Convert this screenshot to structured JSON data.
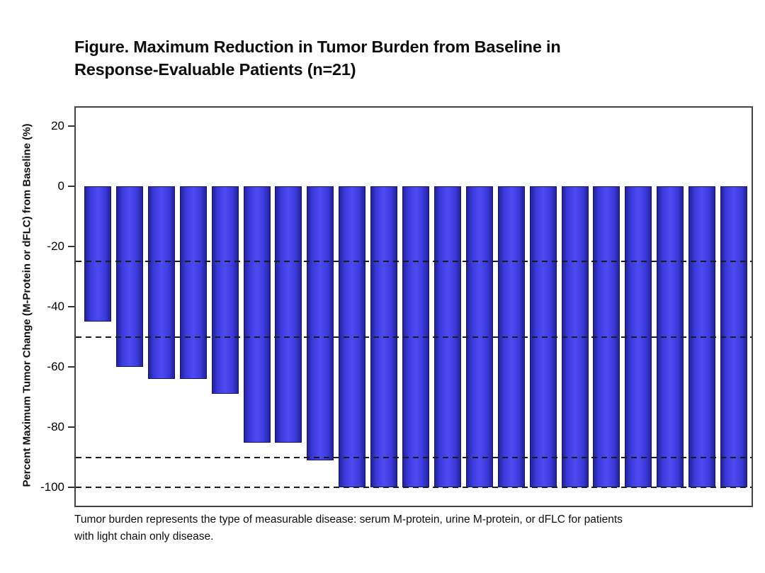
{
  "figure": {
    "title_line1": "Figure. Maximum Reduction in Tumor Burden from Baseline in",
    "title_line2": "Response-Evaluable Patients (n=21)",
    "footnote_line1": "Tumor burden represents the type of measurable disease: serum M-protein, urine M-protein, or dFLC for patients",
    "footnote_line2": "with light chain only disease."
  },
  "chart_data": {
    "type": "bar",
    "title": "Figure. Maximum Reduction in Tumor Burden from Baseline in Response-Evaluable Patients (n=21)",
    "xlabel": "",
    "ylabel": "Percent Maximum Tumor Change (M-Protein or dFLC) from Baseline (%)",
    "n_patients": 21,
    "values": [
      -45,
      -60,
      -64,
      -64,
      -69,
      -85,
      -85,
      -91,
      -100,
      -100,
      -100,
      -100,
      -100,
      -100,
      -100,
      -100,
      -100,
      -100,
      -100,
      -100,
      -100
    ],
    "yticks": [
      20,
      0,
      -20,
      -40,
      -60,
      -80,
      -100
    ],
    "ylim": [
      26,
      -106
    ],
    "reference_lines": [
      -25,
      -50,
      -90,
      -100
    ],
    "grid": false,
    "legend_position": "none",
    "footnote": "Tumor burden represents the type of measurable disease: serum M-protein, urine M-protein, or dFLC for patients with light chain only disease.",
    "colors": {
      "bar_center": "#4b4bf1",
      "bar_mid": "#3b3bdd",
      "bar_edge": "#232399",
      "bar_outline": "#15156a",
      "axis_frame": "#434343",
      "tick": "#333333",
      "reference_line": "#1c1c1c",
      "text": "#0d0d0d",
      "background": "#ffffff"
    }
  }
}
